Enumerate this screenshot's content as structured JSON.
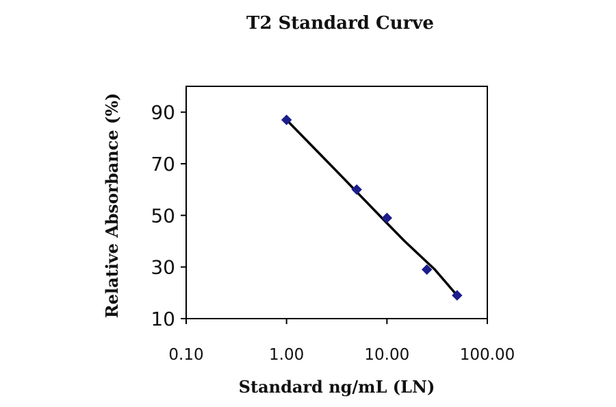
{
  "chart_data": {
    "type": "scatter",
    "title": "T2 Standard Curve",
    "xlabel": "Standard ng/mL (LN)",
    "ylabel": "Relative Absorbance (%)",
    "x_scale": "log",
    "xlim": [
      0.1,
      100
    ],
    "ylim": [
      10,
      100
    ],
    "x_ticks": [
      0.1,
      1,
      10,
      100
    ],
    "x_tick_labels": [
      "0.10",
      "1.00",
      "10.00",
      "100.00"
    ],
    "y_ticks": [
      10,
      30,
      50,
      70,
      90
    ],
    "y_tick_labels": [
      "10",
      "30",
      "50",
      "70",
      "90"
    ],
    "grid": false,
    "legend": "none",
    "series": [
      {
        "points": [
          {
            "x": 1,
            "y": 87
          },
          {
            "x": 5,
            "y": 60
          },
          {
            "x": 10,
            "y": 49
          },
          {
            "x": 25,
            "y": 29
          },
          {
            "x": 50,
            "y": 19
          }
        ],
        "marker": "diamond",
        "marker_color": "#1c1c8c"
      }
    ],
    "trendline": {
      "points": [
        {
          "x": 1,
          "y": 87
        },
        {
          "x": 3,
          "y": 68
        },
        {
          "x": 10,
          "y": 47
        },
        {
          "x": 15,
          "y": 40
        },
        {
          "x": 30,
          "y": 29
        },
        {
          "x": 50,
          "y": 19
        }
      ],
      "color": "#000000"
    },
    "axis_color": "#000000"
  }
}
